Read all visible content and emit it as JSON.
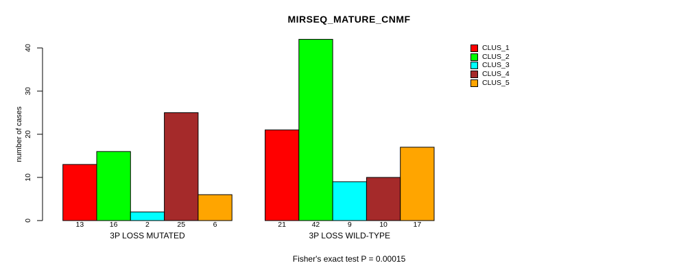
{
  "header": {
    "title": "MIRSEQ_MATURE_CNMF"
  },
  "footer": {
    "note": "Fisher's exact test P = 0.00015"
  },
  "legend": {
    "items": [
      {
        "label": "CLUS_1",
        "color": "#FF0000"
      },
      {
        "label": "CLUS_2",
        "color": "#00FF00"
      },
      {
        "label": "CLUS_3",
        "color": "#00FFFF"
      },
      {
        "label": "CLUS_4",
        "color": "#A52A2A"
      },
      {
        "label": "CLUS_5",
        "color": "#FFA500"
      }
    ]
  },
  "chart_data": {
    "type": "bar",
    "title": "MIRSEQ_MATURE_CNMF",
    "xlabel": "",
    "ylabel": "number of cases",
    "ylim": [
      0,
      40
    ],
    "yticks": [
      0,
      10,
      20,
      30,
      40
    ],
    "grid": false,
    "legend_position": "right",
    "categories": [
      "3P LOSS MUTATED",
      "3P LOSS WILD-TYPE"
    ],
    "series": [
      {
        "name": "CLUS_1",
        "color": "#FF0000",
        "values": [
          13,
          21
        ]
      },
      {
        "name": "CLUS_2",
        "color": "#00FF00",
        "values": [
          16,
          42
        ]
      },
      {
        "name": "CLUS_3",
        "color": "#00FFFF",
        "values": [
          2,
          9
        ]
      },
      {
        "name": "CLUS_4",
        "color": "#A52A2A",
        "values": [
          25,
          10
        ]
      },
      {
        "name": "CLUS_5",
        "color": "#FFA500",
        "values": [
          6,
          17
        ]
      }
    ],
    "bar_value_labels": [
      [
        13,
        16,
        2,
        25,
        6
      ],
      [
        21,
        42,
        9,
        10,
        17
      ]
    ],
    "annotation": "Fisher's exact test P = 0.00015"
  }
}
